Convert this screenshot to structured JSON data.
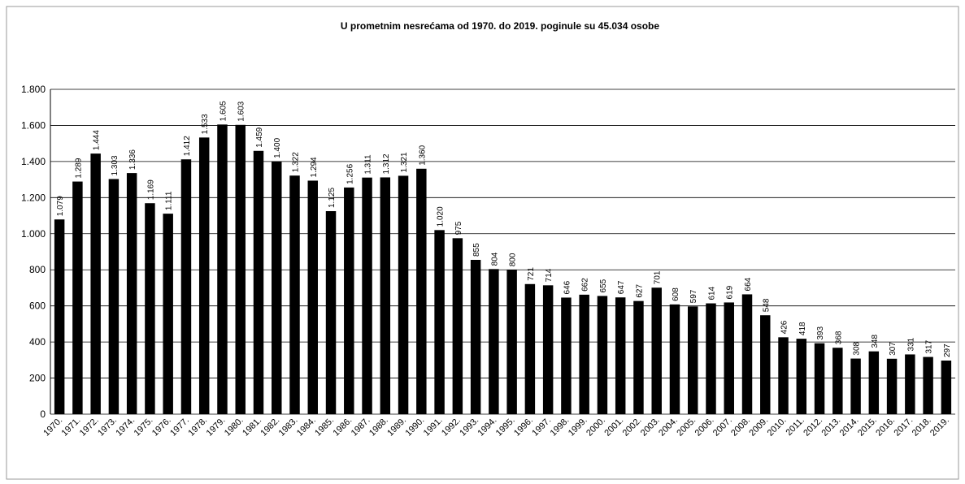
{
  "chart_data": {
    "type": "bar",
    "title": "U prometnim nesrećama od 1970. do 2019. poginule su 45.034 osobe",
    "categories": [
      "1970.",
      "1971.",
      "1972.",
      "1973.",
      "1974.",
      "1975.",
      "1976.",
      "1977.",
      "1978.",
      "1979.",
      "1980.",
      "1981.",
      "1982.",
      "1983.",
      "1984.",
      "1985.",
      "1986.",
      "1987.",
      "1988.",
      "1989.",
      "1990.",
      "1991.",
      "1992.",
      "1993.",
      "1994.",
      "1995.",
      "1996.",
      "1997.",
      "1998.",
      "1999.",
      "2000.",
      "2001.",
      "2002.",
      "2003.",
      "2004.",
      "2005.",
      "2006.",
      "2007.",
      "2008.",
      "2009.",
      "2010.",
      "2011.",
      "2012.",
      "2013.",
      "2014.",
      "2015.",
      "2016.",
      "2017.",
      "2018.",
      "2019."
    ],
    "values": [
      1079,
      1289,
      1444,
      1303,
      1336,
      1169,
      1111,
      1412,
      1533,
      1605,
      1603,
      1459,
      1400,
      1322,
      1294,
      1125,
      1256,
      1311,
      1312,
      1321,
      1360,
      1020,
      975,
      855,
      804,
      800,
      721,
      714,
      646,
      662,
      655,
      647,
      627,
      701,
      608,
      597,
      614,
      619,
      664,
      548,
      426,
      418,
      393,
      368,
      308,
      348,
      307,
      331,
      317,
      297
    ],
    "value_labels": [
      "1.079",
      "1.289",
      "1.444",
      "1.303",
      "1.336",
      "1.169",
      "1.111",
      "1.412",
      "1.533",
      "1.605",
      "1.603",
      "1.459",
      "1.400",
      "1.322",
      "1.294",
      "1.125",
      "1.256",
      "1.311",
      "1.312",
      "1.321",
      "1.360",
      "1.020",
      "975",
      "855",
      "804",
      "800",
      "721",
      "714",
      "646",
      "662",
      "655",
      "647",
      "627",
      "701",
      "608",
      "597",
      "614",
      "619",
      "664",
      "548",
      "426",
      "418",
      "393",
      "368",
      "308",
      "348",
      "307",
      "331",
      "317",
      "297"
    ],
    "color": "#000000",
    "ylim": [
      0,
      1800
    ],
    "yticks": [
      0,
      200,
      400,
      600,
      800,
      {
        "value": 1000,
        "label": "1.000"
      },
      {
        "value": 1200,
        "label": "1.200"
      },
      {
        "value": 1400,
        "label": "1.400"
      },
      {
        "value": 1600,
        "label": "1.600"
      },
      {
        "value": 1800,
        "label": "1.800"
      }
    ],
    "grid": true
  }
}
